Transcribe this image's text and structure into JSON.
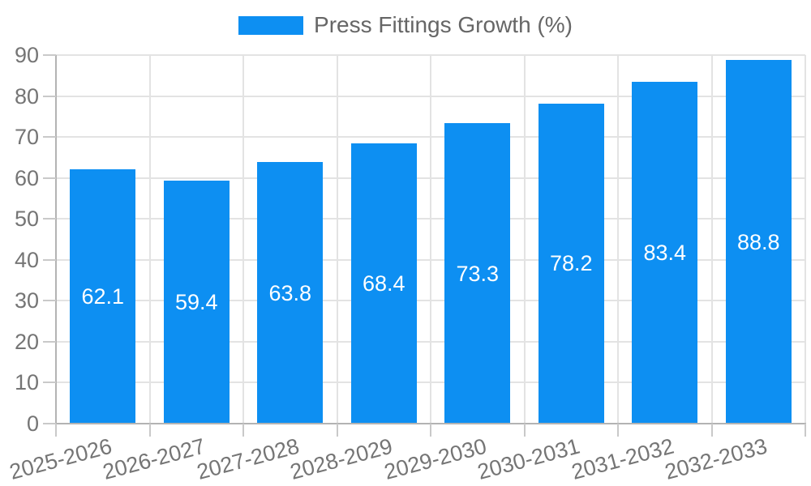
{
  "chart_data": {
    "type": "bar",
    "title": "Press Fittings Growth (%)",
    "legend": {
      "label": "Press Fittings Growth (%)",
      "position": "top"
    },
    "categories": [
      "2025-2026",
      "2026-2027",
      "2027-2028",
      "2028-2029",
      "2029-2030",
      "2030-2031",
      "2031-2032",
      "2032-2033"
    ],
    "values": [
      62.1,
      59.4,
      63.8,
      68.4,
      73.3,
      78.2,
      83.4,
      88.8
    ],
    "value_labels": [
      "62.1",
      "59.4",
      "63.8",
      "68.4",
      "73.3",
      "78.2",
      "83.4",
      "88.8"
    ],
    "xlabel": "",
    "ylabel": "",
    "ylim": [
      0,
      90
    ],
    "ytick_step": 10,
    "grid": true,
    "x_label_rotation_deg": -15,
    "colors": {
      "bar": "#0d8ff2",
      "value_label": "#ffffff",
      "axis_text": "#757575",
      "legend_text": "#666666",
      "grid_line": "#e3e3e3",
      "axis_line": "#b3b3b3",
      "tick_line": "#c9c9c9",
      "background": "#ffffff"
    }
  }
}
